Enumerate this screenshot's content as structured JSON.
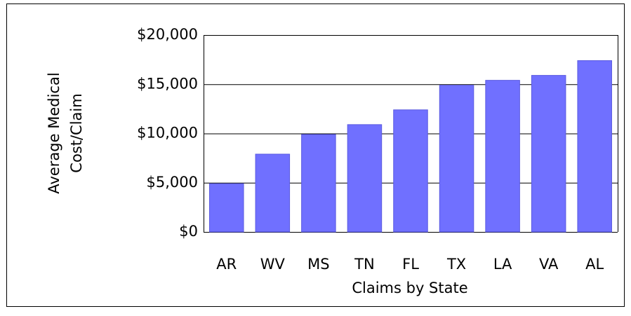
{
  "chart_data": {
    "type": "bar",
    "categories": [
      "AR",
      "WV",
      "MS",
      "TN",
      "FL",
      "TX",
      "LA",
      "VA",
      "AL"
    ],
    "values": [
      4900,
      7900,
      9900,
      10900,
      12400,
      14900,
      15400,
      15900,
      17400
    ],
    "color": "#7070ff",
    "ylim": [
      0,
      20000
    ],
    "yticks": [
      {
        "value": 0,
        "label": "$0"
      },
      {
        "value": 5000,
        "label": "$5,000"
      },
      {
        "value": 10000,
        "label": "$10,000"
      },
      {
        "value": 15000,
        "label": "$15,000"
      },
      {
        "value": 20000,
        "label": "$20,000"
      }
    ],
    "grid": true,
    "x_label": "Claims by State",
    "y_label": [
      "Average Medical",
      "Cost/Claim"
    ]
  }
}
